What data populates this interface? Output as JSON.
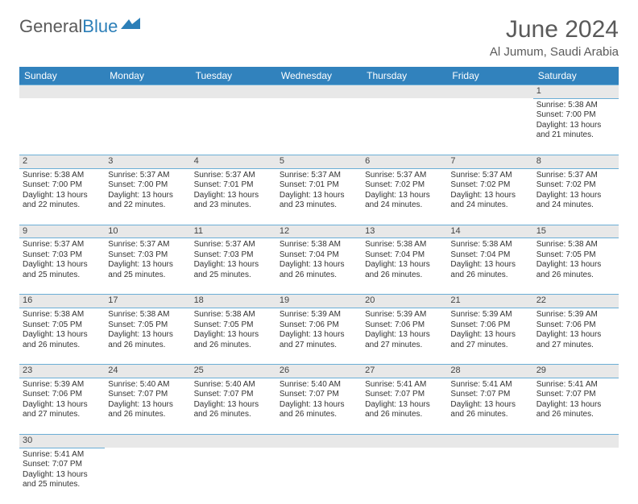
{
  "brand": {
    "part1": "General",
    "part2": "Blue"
  },
  "title": "June 2024",
  "location": "Al Jumum, Saudi Arabia",
  "colors": {
    "header_bg": "#3182bd",
    "header_text": "#ffffff",
    "daynum_bg": "#e8e8e8",
    "border": "#6baed6",
    "text": "#333333",
    "title": "#5a5a5a",
    "brand_blue": "#2c7fb8"
  },
  "weekdays": [
    "Sunday",
    "Monday",
    "Tuesday",
    "Wednesday",
    "Thursday",
    "Friday",
    "Saturday"
  ],
  "weeks": [
    {
      "nums": [
        "",
        "",
        "",
        "",
        "",
        "",
        "1"
      ],
      "cells": [
        null,
        null,
        null,
        null,
        null,
        null,
        {
          "sunrise": "Sunrise: 5:38 AM",
          "sunset": "Sunset: 7:00 PM",
          "daylight1": "Daylight: 13 hours",
          "daylight2": "and 21 minutes."
        }
      ]
    },
    {
      "nums": [
        "2",
        "3",
        "4",
        "5",
        "6",
        "7",
        "8"
      ],
      "cells": [
        {
          "sunrise": "Sunrise: 5:38 AM",
          "sunset": "Sunset: 7:00 PM",
          "daylight1": "Daylight: 13 hours",
          "daylight2": "and 22 minutes."
        },
        {
          "sunrise": "Sunrise: 5:37 AM",
          "sunset": "Sunset: 7:00 PM",
          "daylight1": "Daylight: 13 hours",
          "daylight2": "and 22 minutes."
        },
        {
          "sunrise": "Sunrise: 5:37 AM",
          "sunset": "Sunset: 7:01 PM",
          "daylight1": "Daylight: 13 hours",
          "daylight2": "and 23 minutes."
        },
        {
          "sunrise": "Sunrise: 5:37 AM",
          "sunset": "Sunset: 7:01 PM",
          "daylight1": "Daylight: 13 hours",
          "daylight2": "and 23 minutes."
        },
        {
          "sunrise": "Sunrise: 5:37 AM",
          "sunset": "Sunset: 7:02 PM",
          "daylight1": "Daylight: 13 hours",
          "daylight2": "and 24 minutes."
        },
        {
          "sunrise": "Sunrise: 5:37 AM",
          "sunset": "Sunset: 7:02 PM",
          "daylight1": "Daylight: 13 hours",
          "daylight2": "and 24 minutes."
        },
        {
          "sunrise": "Sunrise: 5:37 AM",
          "sunset": "Sunset: 7:02 PM",
          "daylight1": "Daylight: 13 hours",
          "daylight2": "and 24 minutes."
        }
      ]
    },
    {
      "nums": [
        "9",
        "10",
        "11",
        "12",
        "13",
        "14",
        "15"
      ],
      "cells": [
        {
          "sunrise": "Sunrise: 5:37 AM",
          "sunset": "Sunset: 7:03 PM",
          "daylight1": "Daylight: 13 hours",
          "daylight2": "and 25 minutes."
        },
        {
          "sunrise": "Sunrise: 5:37 AM",
          "sunset": "Sunset: 7:03 PM",
          "daylight1": "Daylight: 13 hours",
          "daylight2": "and 25 minutes."
        },
        {
          "sunrise": "Sunrise: 5:37 AM",
          "sunset": "Sunset: 7:03 PM",
          "daylight1": "Daylight: 13 hours",
          "daylight2": "and 25 minutes."
        },
        {
          "sunrise": "Sunrise: 5:38 AM",
          "sunset": "Sunset: 7:04 PM",
          "daylight1": "Daylight: 13 hours",
          "daylight2": "and 26 minutes."
        },
        {
          "sunrise": "Sunrise: 5:38 AM",
          "sunset": "Sunset: 7:04 PM",
          "daylight1": "Daylight: 13 hours",
          "daylight2": "and 26 minutes."
        },
        {
          "sunrise": "Sunrise: 5:38 AM",
          "sunset": "Sunset: 7:04 PM",
          "daylight1": "Daylight: 13 hours",
          "daylight2": "and 26 minutes."
        },
        {
          "sunrise": "Sunrise: 5:38 AM",
          "sunset": "Sunset: 7:05 PM",
          "daylight1": "Daylight: 13 hours",
          "daylight2": "and 26 minutes."
        }
      ]
    },
    {
      "nums": [
        "16",
        "17",
        "18",
        "19",
        "20",
        "21",
        "22"
      ],
      "cells": [
        {
          "sunrise": "Sunrise: 5:38 AM",
          "sunset": "Sunset: 7:05 PM",
          "daylight1": "Daylight: 13 hours",
          "daylight2": "and 26 minutes."
        },
        {
          "sunrise": "Sunrise: 5:38 AM",
          "sunset": "Sunset: 7:05 PM",
          "daylight1": "Daylight: 13 hours",
          "daylight2": "and 26 minutes."
        },
        {
          "sunrise": "Sunrise: 5:38 AM",
          "sunset": "Sunset: 7:05 PM",
          "daylight1": "Daylight: 13 hours",
          "daylight2": "and 26 minutes."
        },
        {
          "sunrise": "Sunrise: 5:39 AM",
          "sunset": "Sunset: 7:06 PM",
          "daylight1": "Daylight: 13 hours",
          "daylight2": "and 27 minutes."
        },
        {
          "sunrise": "Sunrise: 5:39 AM",
          "sunset": "Sunset: 7:06 PM",
          "daylight1": "Daylight: 13 hours",
          "daylight2": "and 27 minutes."
        },
        {
          "sunrise": "Sunrise: 5:39 AM",
          "sunset": "Sunset: 7:06 PM",
          "daylight1": "Daylight: 13 hours",
          "daylight2": "and 27 minutes."
        },
        {
          "sunrise": "Sunrise: 5:39 AM",
          "sunset": "Sunset: 7:06 PM",
          "daylight1": "Daylight: 13 hours",
          "daylight2": "and 27 minutes."
        }
      ]
    },
    {
      "nums": [
        "23",
        "24",
        "25",
        "26",
        "27",
        "28",
        "29"
      ],
      "cells": [
        {
          "sunrise": "Sunrise: 5:39 AM",
          "sunset": "Sunset: 7:06 PM",
          "daylight1": "Daylight: 13 hours",
          "daylight2": "and 27 minutes."
        },
        {
          "sunrise": "Sunrise: 5:40 AM",
          "sunset": "Sunset: 7:07 PM",
          "daylight1": "Daylight: 13 hours",
          "daylight2": "and 26 minutes."
        },
        {
          "sunrise": "Sunrise: 5:40 AM",
          "sunset": "Sunset: 7:07 PM",
          "daylight1": "Daylight: 13 hours",
          "daylight2": "and 26 minutes."
        },
        {
          "sunrise": "Sunrise: 5:40 AM",
          "sunset": "Sunset: 7:07 PM",
          "daylight1": "Daylight: 13 hours",
          "daylight2": "and 26 minutes."
        },
        {
          "sunrise": "Sunrise: 5:41 AM",
          "sunset": "Sunset: 7:07 PM",
          "daylight1": "Daylight: 13 hours",
          "daylight2": "and 26 minutes."
        },
        {
          "sunrise": "Sunrise: 5:41 AM",
          "sunset": "Sunset: 7:07 PM",
          "daylight1": "Daylight: 13 hours",
          "daylight2": "and 26 minutes."
        },
        {
          "sunrise": "Sunrise: 5:41 AM",
          "sunset": "Sunset: 7:07 PM",
          "daylight1": "Daylight: 13 hours",
          "daylight2": "and 26 minutes."
        }
      ]
    },
    {
      "nums": [
        "30",
        "",
        "",
        "",
        "",
        "",
        ""
      ],
      "cells": [
        {
          "sunrise": "Sunrise: 5:41 AM",
          "sunset": "Sunset: 7:07 PM",
          "daylight1": "Daylight: 13 hours",
          "daylight2": "and 25 minutes."
        },
        null,
        null,
        null,
        null,
        null,
        null
      ]
    }
  ]
}
